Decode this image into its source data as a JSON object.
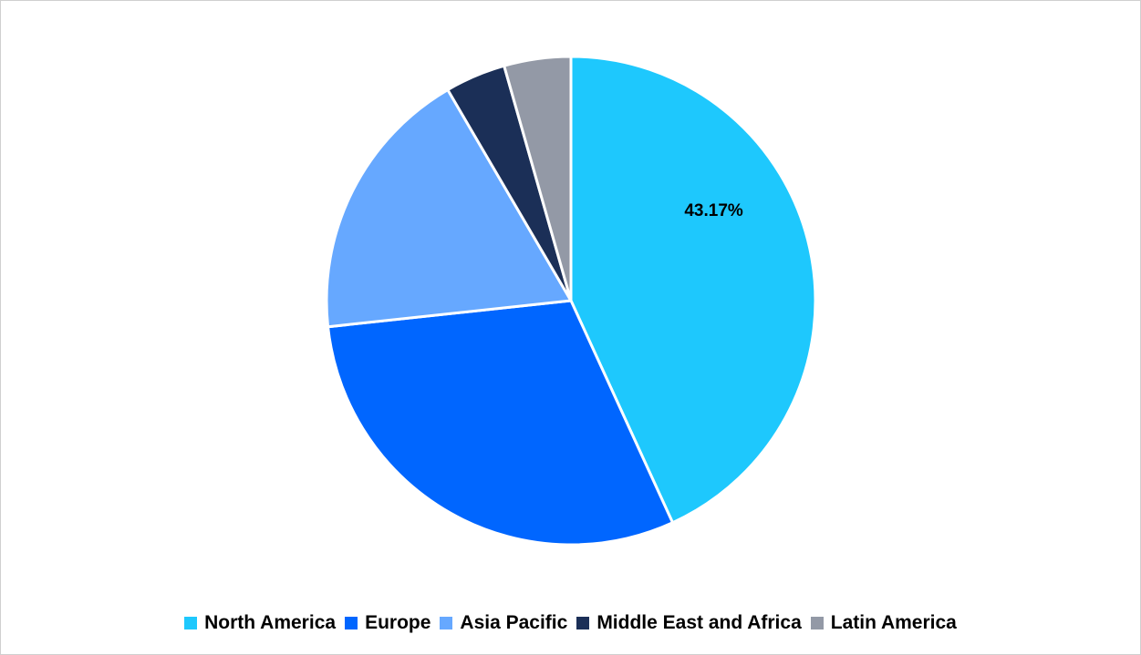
{
  "chart_data": {
    "type": "pie",
    "series": [
      {
        "name": "North America",
        "value": 43.17,
        "color": "#1ec8fd",
        "label": "43.17%"
      },
      {
        "name": "Europe",
        "value": 30.12,
        "color": "#0066ff",
        "label": ""
      },
      {
        "name": "Asia Pacific",
        "value": 18.3,
        "color": "#66a8ff",
        "label": ""
      },
      {
        "name": "Middle East and Africa",
        "value": 4.0,
        "color": "#1b2f57",
        "label": ""
      },
      {
        "name": "Latin America",
        "value": 4.41,
        "color": "#9399a6",
        "label": ""
      }
    ],
    "title": "",
    "legend_position": "bottom"
  }
}
